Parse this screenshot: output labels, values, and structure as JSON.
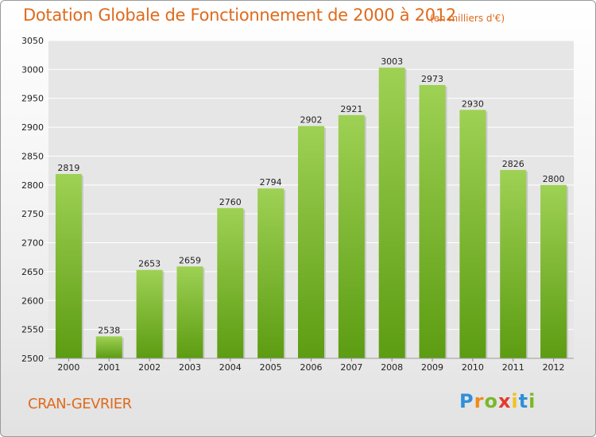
{
  "chart_data": {
    "type": "bar",
    "title": "Dotation Globale de Fonctionnement de 2000 à 2012",
    "subtitle": "(en milliers d'€)",
    "categories": [
      "2000",
      "2001",
      "2002",
      "2003",
      "2004",
      "2005",
      "2006",
      "2007",
      "2008",
      "2009",
      "2010",
      "2011",
      "2012"
    ],
    "values": [
      2819,
      2538,
      2653,
      2659,
      2760,
      2794,
      2902,
      2921,
      3003,
      2973,
      2930,
      2826,
      2800
    ],
    "ylim": [
      2500,
      3050
    ],
    "yticks": [
      2500,
      2550,
      2600,
      2650,
      2700,
      2750,
      2800,
      2850,
      2900,
      2950,
      3000,
      3050
    ],
    "grid": true,
    "bar_color": "#7ab82e",
    "xlabel": "",
    "ylabel": ""
  },
  "footer": {
    "commune": "CRAN-GEVRIER",
    "logo": "Proxiti"
  }
}
